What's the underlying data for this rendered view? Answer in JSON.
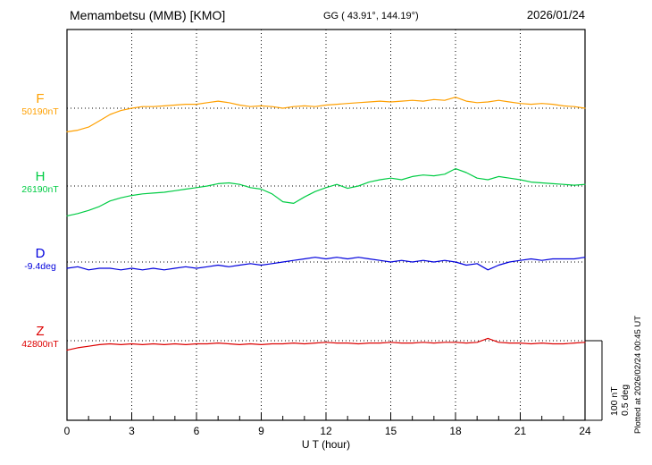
{
  "header": {
    "station": "Memambetsu (MMB)  [KMO]",
    "gg": "GG ( 43.91°, 144.19°)",
    "date": "2026/01/24"
  },
  "side": {
    "scale_nt": "100 nT",
    "scale_deg": "0.5 deg",
    "plotted": "Plotted at 2026/02/24 00:45 UT"
  },
  "chart_data": {
    "type": "line",
    "title": "Memambetsu (MMB) [KMO] magnetogram",
    "xlabel": "U T (hour)",
    "x_range_hours": [
      0,
      24
    ],
    "x_ticks": [
      "0",
      "3",
      "6",
      "9",
      "12",
      "15",
      "18",
      "21",
      "24"
    ],
    "x_step_hours": 0.5,
    "scale_bar": {
      "field": "100 nT",
      "declination": "0.5 deg"
    },
    "series": [
      {
        "name": "F",
        "baseline_label": "50190nT",
        "baseline_value": 50190,
        "unit": "nT",
        "color": "#ffa000",
        "offsets": [
          -30,
          -28,
          -24,
          -16,
          -8,
          -3,
          0,
          2,
          2,
          3,
          4,
          5,
          5,
          7,
          9,
          7,
          4,
          2,
          3,
          2,
          0,
          2,
          3,
          2,
          4,
          5,
          6,
          7,
          8,
          9,
          8,
          9,
          10,
          9,
          11,
          10,
          14,
          9,
          7,
          8,
          10,
          8,
          6,
          5,
          6,
          5,
          3,
          2,
          0
        ]
      },
      {
        "name": "H",
        "baseline_label": "26190nT",
        "baseline_value": 26190,
        "unit": "nT",
        "color": "#00cc44",
        "offsets": [
          -38,
          -35,
          -31,
          -26,
          -19,
          -15,
          -12,
          -10,
          -9,
          -8,
          -6,
          -4,
          -2,
          0,
          3,
          4,
          2,
          -2,
          -4,
          -10,
          -20,
          -22,
          -14,
          -7,
          -2,
          2,
          -3,
          0,
          5,
          8,
          10,
          8,
          12,
          14,
          13,
          15,
          22,
          17,
          10,
          8,
          12,
          10,
          8,
          5,
          4,
          3,
          2,
          1,
          2
        ]
      },
      {
        "name": "D",
        "baseline_label": "-9.4deg",
        "baseline_value": -9.4,
        "unit": "deg",
        "color": "#0000dd",
        "offsets": [
          -0.04,
          -0.03,
          -0.05,
          -0.04,
          -0.04,
          -0.05,
          -0.04,
          -0.05,
          -0.04,
          -0.05,
          -0.04,
          -0.03,
          -0.04,
          -0.03,
          -0.02,
          -0.03,
          -0.02,
          -0.01,
          -0.02,
          -0.01,
          0,
          0.01,
          0.02,
          0.03,
          0.02,
          0.03,
          0.02,
          0.03,
          0.02,
          0.01,
          0,
          0.01,
          0,
          0.01,
          0,
          0.01,
          0,
          -0.02,
          -0.01,
          -0.05,
          -0.02,
          0,
          0.01,
          0.02,
          0.01,
          0.02,
          0.02,
          0.02,
          0.03
        ]
      },
      {
        "name": "Z",
        "baseline_label": "42800nT",
        "baseline_value": 42800,
        "unit": "nT",
        "color": "#dd0000",
        "offsets": [
          -12,
          -9,
          -7,
          -5,
          -4,
          -5,
          -4,
          -5,
          -4,
          -5,
          -4,
          -5,
          -4,
          -4,
          -3,
          -4,
          -5,
          -4,
          -5,
          -4,
          -4,
          -3,
          -4,
          -3,
          -2,
          -3,
          -3,
          -4,
          -3,
          -3,
          -2,
          -3,
          -3,
          -2,
          -3,
          -2,
          -2,
          -3,
          -2,
          3,
          -2,
          -3,
          -3,
          -4,
          -3,
          -4,
          -4,
          -3,
          -2
        ]
      }
    ]
  }
}
